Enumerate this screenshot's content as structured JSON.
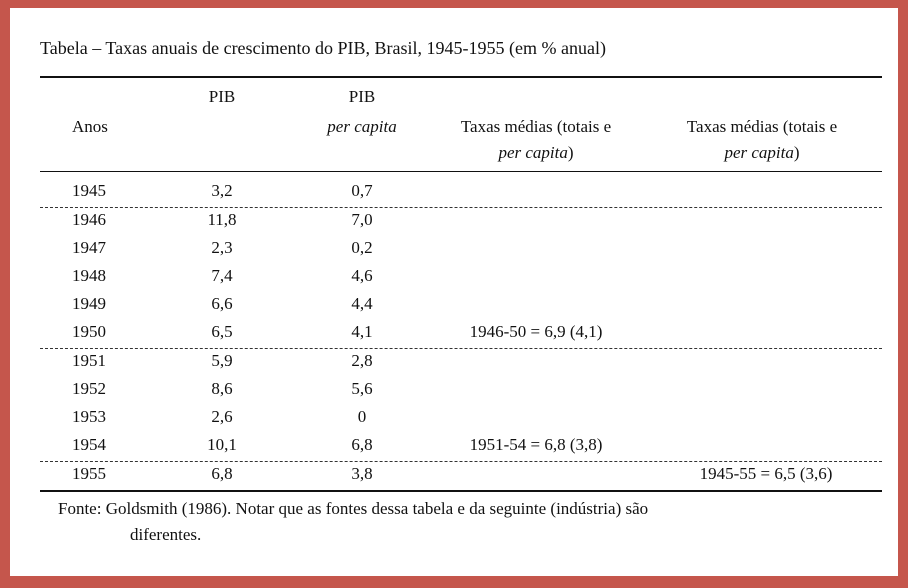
{
  "caption": "Tabela  –  Taxas anuais de crescimento do PIB, Brasil, 1945-1955 (em % anual)",
  "headers": {
    "anos": "Anos",
    "pib": "PIB",
    "pib_pc_line1": "PIB",
    "pib_pc_line2": "per capita",
    "col4_line1": "Taxas médias (totais e",
    "col4_line2_italic": "per capita",
    "col4_line2_end": ")",
    "col5_line1": "Taxas médias (totais e",
    "col5_line2_italic": "per capita",
    "col5_line2_end": ")"
  },
  "rows": [
    {
      "ano": "1945",
      "pib": "3,2",
      "pc": "0,7",
      "media4": "",
      "media5": ""
    },
    {
      "ano": "1946",
      "pib": "11,8",
      "pc": "7,0",
      "media4": "",
      "media5": ""
    },
    {
      "ano": "1947",
      "pib": "2,3",
      "pc": "0,2",
      "media4": "",
      "media5": ""
    },
    {
      "ano": "1948",
      "pib": "7,4",
      "pc": "4,6",
      "media4": "",
      "media5": ""
    },
    {
      "ano": "1949",
      "pib": "6,6",
      "pc": "4,4",
      "media4": "",
      "media5": ""
    },
    {
      "ano": "1950",
      "pib": "6,5",
      "pc": "4,1",
      "media4": "1946-50 = 6,9 (4,1)",
      "media5": ""
    },
    {
      "ano": "1951",
      "pib": "5,9",
      "pc": "2,8",
      "media4": "",
      "media5": ""
    },
    {
      "ano": "1952",
      "pib": "8,6",
      "pc": "5,6",
      "media4": "",
      "media5": ""
    },
    {
      "ano": "1953",
      "pib": "2,6",
      "pc": "0",
      "media4": "",
      "media5": ""
    },
    {
      "ano": "1954",
      "pib": "10,1",
      "pc": "6,8",
      "media4": "1951-54 = 6,8 (3,8)",
      "media5": ""
    },
    {
      "ano": "1955",
      "pib": "6,8",
      "pc": "3,8",
      "media4": "",
      "media5": "1945-55 = 6,5 (3,6)"
    }
  ],
  "footnote_line1": "Fonte: Goldsmith (1986). Notar que as fontes dessa tabela e da seguinte (indústria) são",
  "footnote_line2": "diferentes."
}
